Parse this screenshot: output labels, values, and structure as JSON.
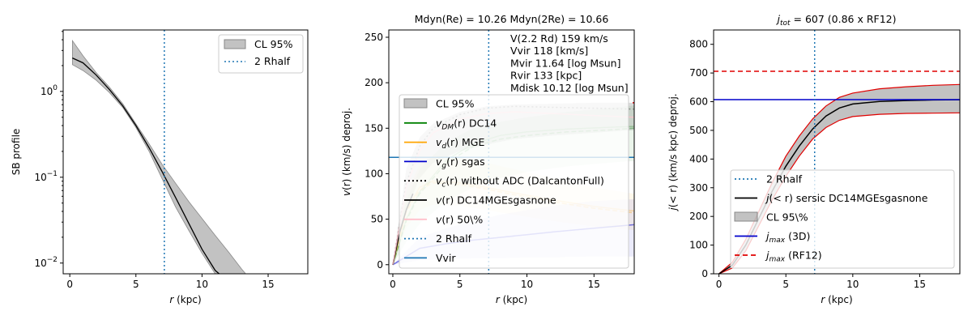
{
  "colors": {
    "band_gray": "#999999",
    "black": "#000000",
    "vline": "#1f77b4",
    "green": "#008000",
    "orange": "#ffa500",
    "blue": "#0000cc",
    "pink": "#ffc0cb",
    "lightblue": "#1f77b4",
    "red": "#e00000"
  },
  "chart_data": [
    {
      "type": "line",
      "title": "",
      "xlabel": "r (kpc)",
      "ylabel": "SB profile",
      "xlim": [
        -0.5,
        18
      ],
      "ylim": [
        0.0075,
        5.2
      ],
      "yscale": "log",
      "xticks": [
        "0",
        "5",
        "10",
        "15"
      ],
      "yticks": [
        {
          "base": "10",
          "exp": "0",
          "value": 1
        },
        {
          "base": "10",
          "exp": "−1",
          "value": 0.1
        },
        {
          "base": "10",
          "exp": "−2",
          "value": 0.01
        }
      ],
      "legend_position": "upper-right",
      "legend": [
        "CL 95%",
        "2 Rhalf"
      ],
      "vline_x": 7.15,
      "series": [
        {
          "name": "CL 95%",
          "kind": "band",
          "x": [
            0.2,
            1,
            2,
            3,
            4,
            5,
            6,
            7,
            8,
            9,
            10,
            11,
            12,
            13,
            13.3
          ],
          "lower": [
            2.05,
            1.75,
            1.35,
            0.97,
            0.65,
            0.38,
            0.2,
            0.095,
            0.045,
            0.024,
            0.013,
            0.0075,
            0.0075,
            0.0075,
            0.0075
          ],
          "upper": [
            3.9,
            2.6,
            1.65,
            1.12,
            0.72,
            0.42,
            0.245,
            0.14,
            0.085,
            0.052,
            0.033,
            0.021,
            0.0135,
            0.0085,
            0.0075
          ]
        },
        {
          "name": "",
          "kind": "line",
          "x": [
            0.2,
            1,
            2,
            3,
            4,
            5,
            6,
            7,
            8,
            9,
            10,
            11,
            11.3
          ],
          "y": [
            2.45,
            2.15,
            1.55,
            1.05,
            0.68,
            0.4,
            0.22,
            0.115,
            0.058,
            0.029,
            0.0145,
            0.0082,
            0.0075
          ]
        }
      ]
    },
    {
      "type": "line",
      "title": "Mdyn(Re) = 10.26  Mdyn(2Re) = 10.66",
      "xlabel": "r (kpc)",
      "ylabel_parts": [
        "v",
        "(r) (km/s) deproj."
      ],
      "xlim": [
        -0.3,
        18
      ],
      "ylim": [
        -10,
        258
      ],
      "xticks": [
        "0",
        "5",
        "10",
        "15"
      ],
      "yticks": [
        "0",
        "50",
        "100",
        "150",
        "200",
        "250"
      ],
      "annotation": [
        "V(2.2 Rd) 159 km/s",
        "Vvir 118 [km/s]",
        "Mvir 11.64 [log Msun]",
        "Rvir 133 [kpc]",
        "Mdisk 10.12 [log Msun]"
      ],
      "legend_position": "lower-right",
      "legend": [
        {
          "parts": [
            "CL 95%"
          ]
        },
        {
          "parts": [
            "v",
            "DM",
            "(r) DC14"
          ]
        },
        {
          "parts": [
            "v",
            "d",
            "(r) MGE"
          ]
        },
        {
          "parts": [
            "v",
            "g",
            "(r) sgas"
          ]
        },
        {
          "parts": [
            "v",
            "c",
            "(r) without ADC (DalcantonFull)"
          ]
        },
        {
          "parts": [
            "v",
            "",
            "(r) DC14MGEsgasnone"
          ]
        },
        {
          "parts": [
            "v",
            "",
            "(r) 50\\%"
          ]
        },
        {
          "parts": [
            "2 Rhalf"
          ]
        },
        {
          "parts": [
            "Vvir"
          ]
        }
      ],
      "vline_x": 7.15,
      "hline_y": 118,
      "series": [
        {
          "name": "CL 95%",
          "kind": "band",
          "x": [
            0,
            1,
            2,
            3,
            5,
            7,
            9,
            12,
            15,
            18
          ],
          "lower": [
            0,
            60,
            95,
            112,
            125,
            132,
            138,
            142,
            145,
            148
          ],
          "upper": [
            0,
            105,
            140,
            155,
            168,
            174,
            176,
            177,
            178,
            178
          ]
        },
        {
          "name": "green band",
          "kind": "band",
          "x": [
            0,
            1,
            2,
            4,
            6,
            8,
            10,
            13,
            16,
            18
          ],
          "lower": [
            0,
            25,
            45,
            70,
            85,
            95,
            102,
            108,
            112,
            114
          ],
          "upper": [
            0,
            70,
            105,
            135,
            150,
            157,
            162,
            168,
            172,
            175
          ]
        },
        {
          "name": "orange band",
          "kind": "band",
          "x": [
            0,
            1,
            2,
            3,
            5,
            7,
            9,
            12,
            15,
            18
          ],
          "lower": [
            0,
            40,
            60,
            66,
            65,
            60,
            55,
            48,
            42,
            38
          ],
          "upper": [
            0,
            80,
            110,
            120,
            118,
            112,
            105,
            95,
            85,
            78
          ]
        },
        {
          "name": "blue band",
          "kind": "band",
          "x": [
            0,
            2,
            4,
            6,
            8,
            10,
            12,
            15,
            18
          ],
          "lower": [
            0,
            5,
            6,
            7,
            7,
            8,
            8,
            9,
            9
          ],
          "upper": [
            0,
            30,
            40,
            48,
            55,
            60,
            65,
            70,
            72
          ]
        },
        {
          "name": "DM",
          "kind": "line",
          "color_key": "green",
          "x": [
            0,
            1,
            2,
            4,
            6,
            8,
            10,
            13,
            16,
            18
          ],
          "y": [
            0,
            50,
            80,
            115,
            133,
            142,
            146,
            149,
            151,
            152
          ]
        },
        {
          "name": "DM50",
          "kind": "line",
          "color_key": "green",
          "dashed": true,
          "light": true,
          "x": [
            0,
            1,
            2,
            4,
            6,
            8,
            10,
            13,
            16,
            18
          ],
          "y": [
            0,
            48,
            78,
            112,
            130,
            138,
            142,
            146,
            148,
            150
          ]
        },
        {
          "name": "d",
          "kind": "line",
          "color_key": "orange",
          "x": [
            0,
            1,
            2,
            3,
            5,
            7,
            9,
            12,
            15,
            18
          ],
          "y": [
            0,
            60,
            85,
            92,
            90,
            85,
            79,
            71,
            64,
            59
          ]
        },
        {
          "name": "d50",
          "kind": "line",
          "color_key": "orange",
          "dashed": true,
          "light": true,
          "x": [
            0,
            1,
            2,
            3,
            5,
            7,
            9,
            12,
            15,
            18
          ],
          "y": [
            0,
            58,
            82,
            90,
            88,
            83,
            77,
            69,
            62,
            57
          ]
        },
        {
          "name": "g",
          "kind": "line",
          "color_key": "blue",
          "x": [
            0,
            2,
            4,
            6,
            8,
            10,
            12,
            15,
            18
          ],
          "y": [
            0,
            18,
            23,
            27,
            30,
            33,
            36,
            40,
            44
          ]
        },
        {
          "name": "c",
          "kind": "line",
          "color_key": "black",
          "dotted": true,
          "light": true,
          "x": [
            0,
            1,
            2,
            3,
            5,
            7,
            9,
            12,
            15,
            18
          ],
          "y": [
            0,
            90,
            130,
            150,
            165,
            172,
            174,
            173,
            172,
            171
          ]
        },
        {
          "name": "total",
          "kind": "line",
          "color_key": "black",
          "x": [
            0,
            0.5,
            1,
            1.5
          ],
          "y": [
            0,
            35,
            60,
            78
          ]
        },
        {
          "name": "50",
          "kind": "line",
          "color_key": "pink",
          "x": [
            0,
            1,
            2,
            3,
            5,
            7,
            9,
            12,
            15,
            18
          ],
          "y": [
            0,
            85,
            125,
            145,
            160,
            166,
            168,
            166,
            164,
            162
          ]
        }
      ]
    },
    {
      "type": "line",
      "title_parts": [
        "j",
        "tot",
        " = 607 (0.86 x RF12)"
      ],
      "xlabel": "r (kpc)",
      "ylabel_parts": [
        "j",
        "(< r) (km/s kpc) deproj."
      ],
      "xlim": [
        -0.4,
        18
      ],
      "ylim": [
        0,
        850
      ],
      "xticks": [
        "0",
        "5",
        "10",
        "15"
      ],
      "yticks": [
        "0",
        "100",
        "200",
        "300",
        "400",
        "500",
        "600",
        "700",
        "800"
      ],
      "legend_position": "lower-right",
      "legend": [
        {
          "parts": [
            "2 Rhalf"
          ]
        },
        {
          "parts": [
            "j",
            "",
            "(< r) sersic DC14MGEsgasnone"
          ]
        },
        {
          "parts": [
            "CL 95\\%"
          ]
        },
        {
          "parts": [
            "j",
            "max",
            " (3D)"
          ]
        },
        {
          "parts": [
            "j",
            "max",
            " (RF12)"
          ]
        }
      ],
      "vline_x": 7.15,
      "hline_3d": 607,
      "hline_rf12": 706,
      "series": [
        {
          "name": "CL 95\\%",
          "kind": "band",
          "x": [
            0,
            1,
            2,
            3,
            4,
            5,
            6,
            7,
            8,
            9,
            10,
            12,
            14,
            16,
            18
          ],
          "lower": [
            0,
            20,
            80,
            170,
            260,
            340,
            410,
            470,
            510,
            535,
            548,
            556,
            559,
            560,
            561
          ],
          "upper": [
            0,
            40,
            120,
            220,
            320,
            410,
            480,
            540,
            585,
            615,
            630,
            645,
            652,
            657,
            660
          ]
        },
        {
          "name": "j",
          "kind": "line",
          "x": [
            0,
            1,
            2,
            3,
            4,
            5,
            6,
            7,
            8,
            9,
            10,
            12,
            14,
            16,
            18
          ],
          "y": [
            0,
            30,
            100,
            195,
            290,
            375,
            445,
            505,
            550,
            578,
            592,
            601,
            604,
            606,
            607
          ]
        }
      ]
    }
  ]
}
